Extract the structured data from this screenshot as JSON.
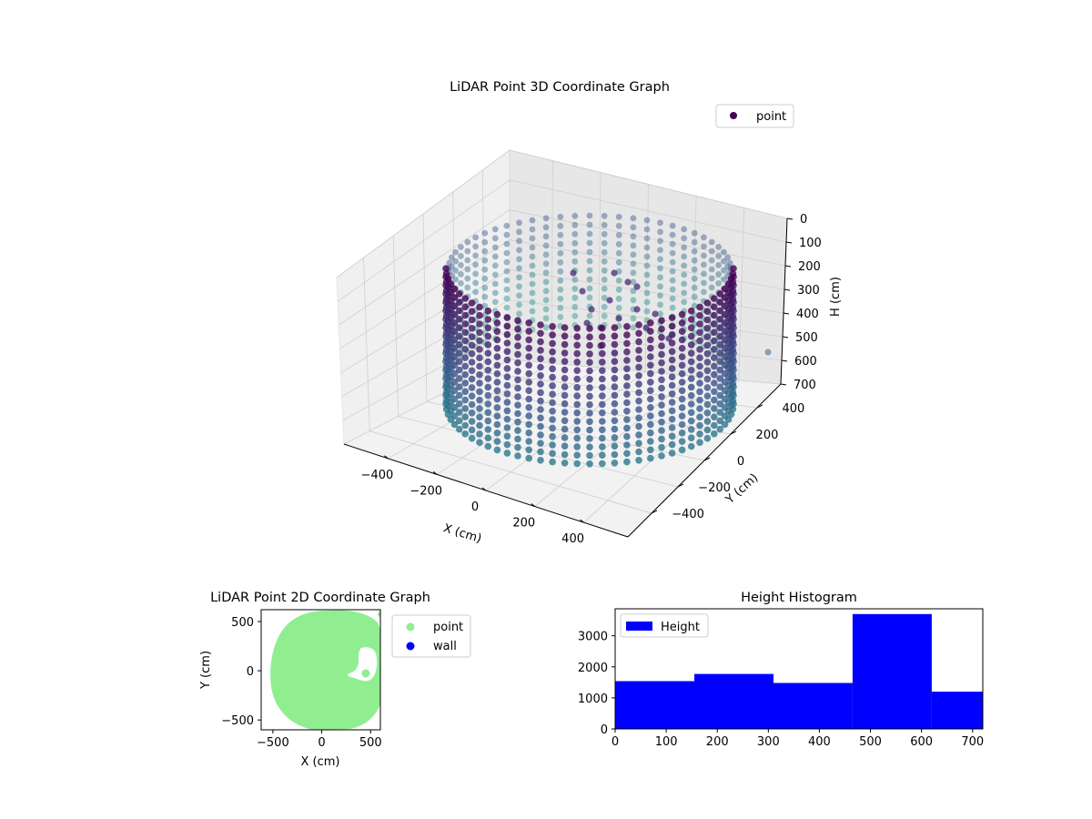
{
  "chart_data": [
    {
      "type": "scatter",
      "projection": "3d",
      "title": "LiDAR Point 3D Coordinate Graph",
      "xlabel": "X (cm)",
      "ylabel": "Y (cm)",
      "zlabel": "H (cm)",
      "x_ticks": [
        "−400",
        "−200",
        "0",
        "200",
        "400"
      ],
      "y_ticks": [
        "400",
        "200",
        "0",
        "−200",
        "−400"
      ],
      "z_ticks": [
        "0",
        "100",
        "200",
        "300",
        "400",
        "500",
        "600",
        "700"
      ],
      "xlim": [
        -580,
        580
      ],
      "ylim": [
        -580,
        580
      ],
      "zlim": [
        0,
        700
      ],
      "z_inverted": true,
      "grid": true,
      "legend": {
        "placement": "upper right",
        "entries": [
          "point"
        ]
      },
      "colormap": "viridis",
      "series": [
        {
          "name": "point",
          "color": "#440154",
          "shape": "cylindrical wall of points, radius about 560 cm, heights 0-700 cm, with an opening near the front and extra clustered points inside near x 50-200 cm"
        }
      ]
    },
    {
      "type": "scatter",
      "title": "LiDAR Point 2D Coordinate Graph",
      "xlabel": "X (cm)",
      "ylabel": "Y (cm)",
      "x_ticks": [
        "−500",
        "0",
        "500"
      ],
      "y_ticks": [
        "500",
        "0",
        "−500"
      ],
      "xlim": [
        -620,
        600
      ],
      "ylim": [
        -600,
        620
      ],
      "grid": false,
      "legend": {
        "placement": "outside right",
        "entries": [
          "point",
          "wall"
        ]
      },
      "series": [
        {
          "name": "point",
          "color": "#90ee90"
        },
        {
          "name": "wall",
          "color": "#0000ff"
        }
      ]
    },
    {
      "type": "bar",
      "title": "Height Histogram",
      "x_ticks": [
        "0",
        "100",
        "200",
        "300",
        "400",
        "500",
        "600",
        "700"
      ],
      "y_ticks": [
        "0",
        "1000",
        "2000",
        "3000"
      ],
      "xlim": [
        0,
        720
      ],
      "ylim": [
        0,
        3870
      ],
      "bin_edges": [
        0,
        155,
        310,
        465,
        620,
        720
      ],
      "values": [
        1540,
        1770,
        1480,
        3700,
        1200
      ],
      "grid": false,
      "legend": {
        "placement": "upper left",
        "entries": [
          "Height"
        ]
      },
      "series": [
        {
          "name": "Height",
          "color": "#0000ff"
        }
      ]
    }
  ]
}
